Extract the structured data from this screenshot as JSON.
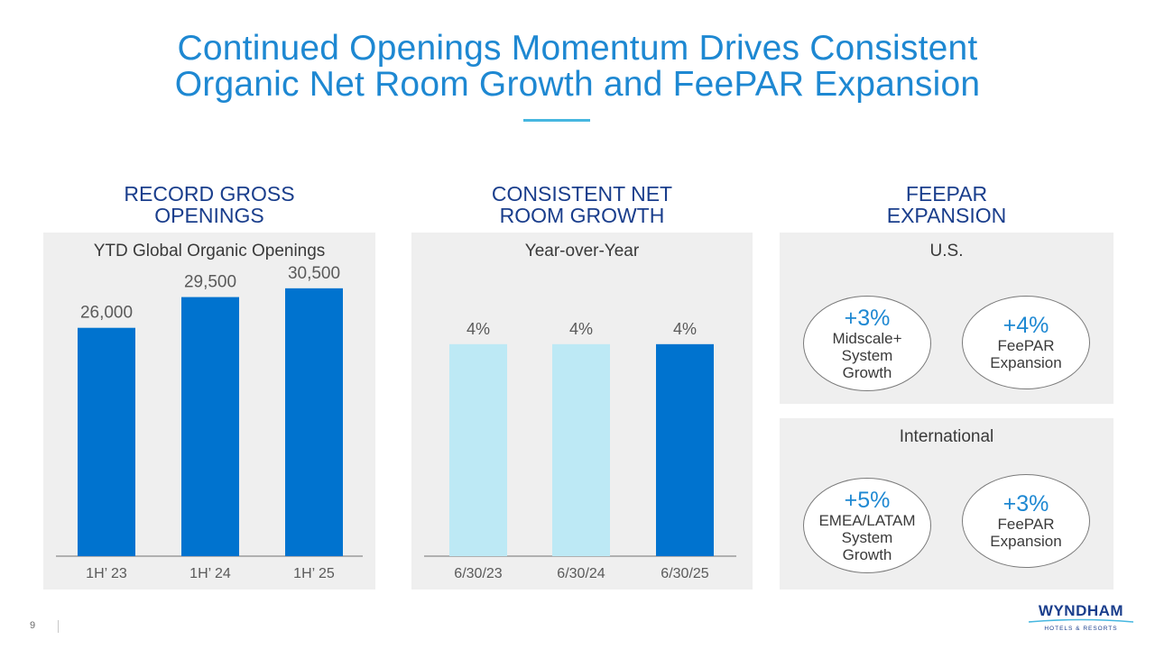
{
  "title": {
    "line1": "Continued Openings Momentum Drives Consistent",
    "line2": "Organic Net Room Growth and FeePAR Expansion"
  },
  "columns": {
    "col1": {
      "line1": "RECORD GROSS",
      "line2": "OPENINGS"
    },
    "col2": {
      "line1": "CONSISTENT NET",
      "line2": "ROOM GROWTH"
    },
    "col3": {
      "line1": "FEEPAR",
      "line2": "EXPANSION"
    }
  },
  "chart_data": [
    {
      "type": "bar",
      "title": "YTD Global Organic Openings",
      "categories": [
        "1H’ 23",
        "1H’ 24",
        "1H’ 25"
      ],
      "values": [
        26000,
        29500,
        30500
      ],
      "labels": [
        "26,000",
        "29,500",
        "30,500"
      ],
      "colors": [
        "#0073cf",
        "#0073cf",
        "#0073cf"
      ],
      "ylim": [
        0,
        35000
      ]
    },
    {
      "type": "bar",
      "title": "Year-over-Year",
      "categories": [
        "6/30/23",
        "6/30/24",
        "6/30/25"
      ],
      "values": [
        4,
        4,
        4
      ],
      "labels": [
        "4%",
        "4%",
        "4%"
      ],
      "colors": [
        "#bde9f5",
        "#bde9f5",
        "#0073cf"
      ],
      "ylim": [
        0,
        5.8
      ]
    }
  ],
  "feepar": {
    "us": {
      "title": "U.S.",
      "left": {
        "big": "+3%",
        "lines": [
          "Midscale+",
          "System",
          "Growth"
        ]
      },
      "right": {
        "big": "+4%",
        "lines": [
          "FeePAR",
          "Expansion"
        ]
      }
    },
    "intl": {
      "title": "International",
      "left": {
        "big": "+5%",
        "lines": [
          "EMEA/LATAM",
          "System",
          "Growth"
        ]
      },
      "right": {
        "big": "+3%",
        "lines": [
          "FeePAR",
          "Expansion"
        ]
      }
    }
  },
  "footer": {
    "page": "9"
  },
  "logo": {
    "word": "WYNDHAM",
    "sub": "HOTELS & RESORTS"
  },
  "colors": {
    "title": "#1e88d2",
    "heading": "#1a3e8c",
    "bar_dark": "#0073cf",
    "bar_light": "#bde9f5",
    "panel": "#efefef"
  }
}
